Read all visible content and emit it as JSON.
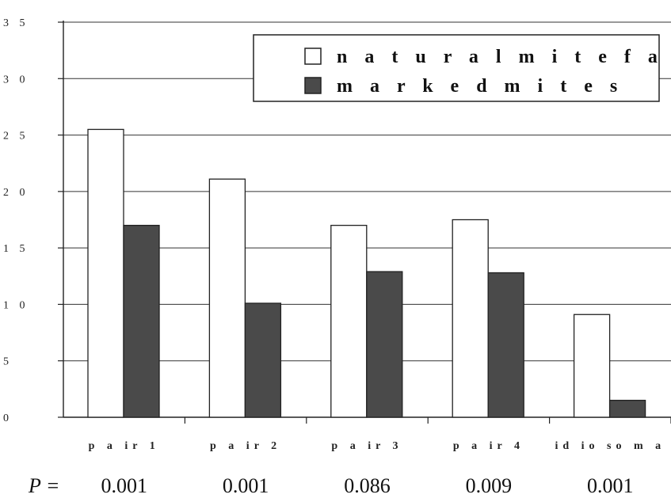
{
  "chart_data": {
    "type": "bar",
    "categories": [
      "p a ir  1",
      "p a ir  2",
      "p a ir  3",
      "p a ir  4",
      "id io so m a"
    ],
    "series": [
      {
        "name": "n a t u r a l  m i t e  f a l l",
        "values": [
          25.5,
          21.1,
          17.0,
          17.5,
          9.1
        ],
        "color": "#ffffff"
      },
      {
        "name": "m a r k e d  m i t e s",
        "values": [
          17.0,
          10.1,
          12.9,
          12.8,
          1.5
        ],
        "color": "#4a4a4a"
      }
    ],
    "yticks": [
      "0",
      "5",
      "1 0",
      "1 5",
      "2 0",
      "2 5",
      "3 0",
      "3 5"
    ],
    "ylim": [
      0,
      35
    ],
    "grid": true,
    "legend_position": "top-right",
    "p_label": "P =",
    "p_values": [
      "0.001",
      "0.001",
      "0.086",
      "0.009",
      "0.001"
    ],
    "title": "",
    "xlabel": "",
    "ylabel": ""
  }
}
